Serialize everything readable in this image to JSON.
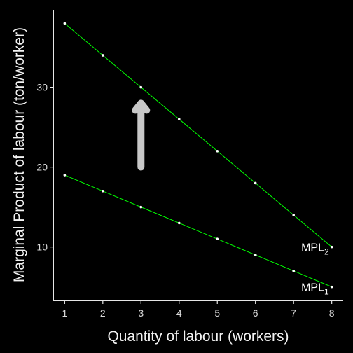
{
  "chart_data": {
    "type": "line",
    "title": "",
    "xlabel": "Quantity of labour (workers)",
    "ylabel": "Marginal Product of labour (ton/worker)",
    "x": [
      1,
      2,
      3,
      4,
      5,
      6,
      7,
      8
    ],
    "xlim": [
      0.7,
      8.3
    ],
    "ylim": [
      3.3,
      39.7
    ],
    "xticks": [
      1,
      2,
      3,
      4,
      5,
      6,
      7,
      8
    ],
    "yticks": [
      10,
      20,
      30
    ],
    "grid": false,
    "series": [
      {
        "name": "MPL",
        "subscript": "1",
        "values": [
          19,
          17,
          15,
          13,
          11,
          9,
          7,
          5
        ]
      },
      {
        "name": "MPL",
        "subscript": "2",
        "values": [
          38,
          34,
          30,
          26,
          22,
          18,
          14,
          10
        ]
      }
    ],
    "annotation": {
      "type": "arrow-up",
      "x": 3,
      "y_from": 20,
      "y_to": 28
    },
    "colors": {
      "background": "#000000",
      "line": "#00ff00",
      "point": "#ffffff",
      "arrow": "#c8c8c8",
      "axis": "#e6e6e6"
    }
  }
}
